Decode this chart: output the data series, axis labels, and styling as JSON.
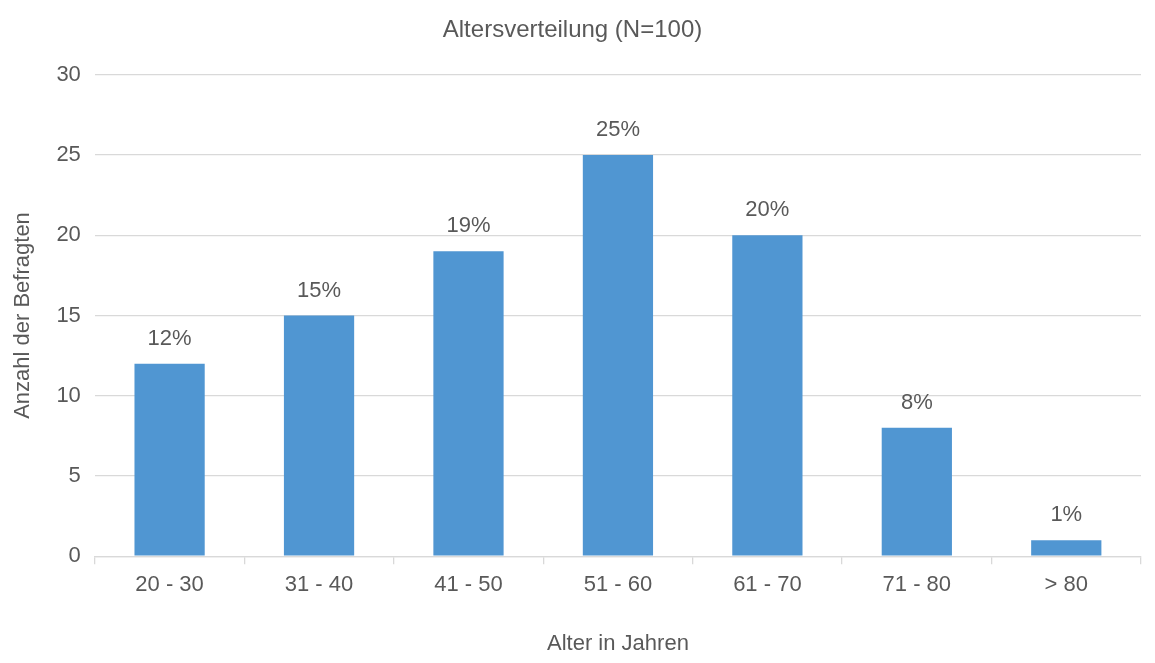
{
  "chart_data": {
    "type": "bar",
    "title": "Altersverteilung (N=100)",
    "xlabel": "Alter in Jahren",
    "ylabel": "Anzahl der Befragten",
    "categories": [
      "20 - 30",
      "31 - 40",
      "41 - 50",
      "51 - 60",
      "61 - 70",
      "71 - 80",
      "> 80"
    ],
    "values": [
      12,
      15,
      19,
      25,
      20,
      8,
      1
    ],
    "value_labels": [
      "12%",
      "15%",
      "19%",
      "25%",
      "20%",
      "8%",
      "1%"
    ],
    "color": "#5096d2",
    "ylim": [
      0,
      30
    ],
    "yticks": [
      0,
      5,
      10,
      15,
      20,
      25,
      30
    ],
    "grid": "y",
    "legend": false
  }
}
